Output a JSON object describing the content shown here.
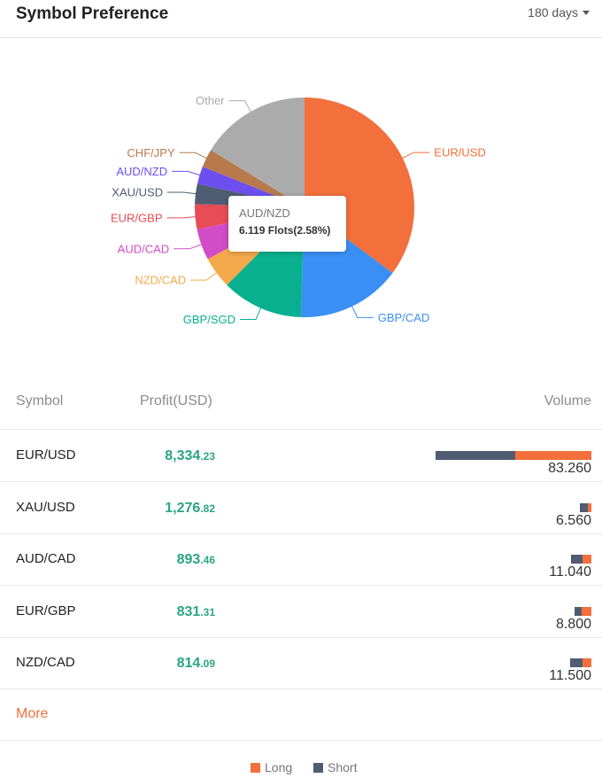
{
  "header": {
    "title": "Symbol Preference",
    "period": "180 days"
  },
  "chart_data": {
    "type": "pie",
    "slices": [
      {
        "label": "EUR/USD",
        "percent": 35.3,
        "color": "#f36f3c"
      },
      {
        "label": "GBP/CAD",
        "percent": 15.4,
        "color": "#3a8ff5"
      },
      {
        "label": "GBP/SGD",
        "percent": 12.0,
        "color": "#09b08f"
      },
      {
        "label": "NZD/CAD",
        "percent": 4.7,
        "color": "#f4a94b"
      },
      {
        "label": "AUD/CAD",
        "percent": 4.6,
        "color": "#d24bc7"
      },
      {
        "label": "EUR/GBP",
        "percent": 3.7,
        "color": "#e84c56"
      },
      {
        "label": "XAU/USD",
        "percent": 3.0,
        "color": "#4f5d73"
      },
      {
        "label": "AUD/NZD",
        "percent": 2.58,
        "color": "#6d4ff0"
      },
      {
        "label": "CHF/JPY",
        "percent": 2.7,
        "color": "#b87a4c"
      },
      {
        "label": "Other",
        "percent": 16.32,
        "color": "#ababab"
      }
    ]
  },
  "tooltip": {
    "name": "AUD/NZD",
    "value": "6.119 Flots(2.58%)"
  },
  "table": {
    "headers": {
      "symbol": "Symbol",
      "profit": "Profit(USD)",
      "volume": "Volume"
    },
    "rows": [
      {
        "symbol": "EUR/USD",
        "profit_int": "8,334",
        "profit_dec": ".23",
        "volume": "83.260",
        "short": 42.7,
        "long": 41.2
      },
      {
        "symbol": "XAU/USD",
        "profit_int": "1,276",
        "profit_dec": ".82",
        "volume": "6.560",
        "short": 4.3,
        "long": 2.1
      },
      {
        "symbol": "AUD/CAD",
        "profit_int": "893",
        "profit_dec": ".46",
        "volume": "11.040",
        "short": 6.3,
        "long": 4.7
      },
      {
        "symbol": "EUR/GBP",
        "profit_int": "831",
        "profit_dec": ".31",
        "volume": "8.800",
        "short": 3.5,
        "long": 5.4
      },
      {
        "symbol": "NZD/CAD",
        "profit_int": "814",
        "profit_dec": ".09",
        "volume": "11.500",
        "short": 6.6,
        "long": 4.9
      }
    ]
  },
  "more_label": "More",
  "legend": {
    "long": {
      "label": "Long",
      "color": "#f36f3c"
    },
    "short": {
      "label": "Short",
      "color": "#4f5d73"
    }
  }
}
